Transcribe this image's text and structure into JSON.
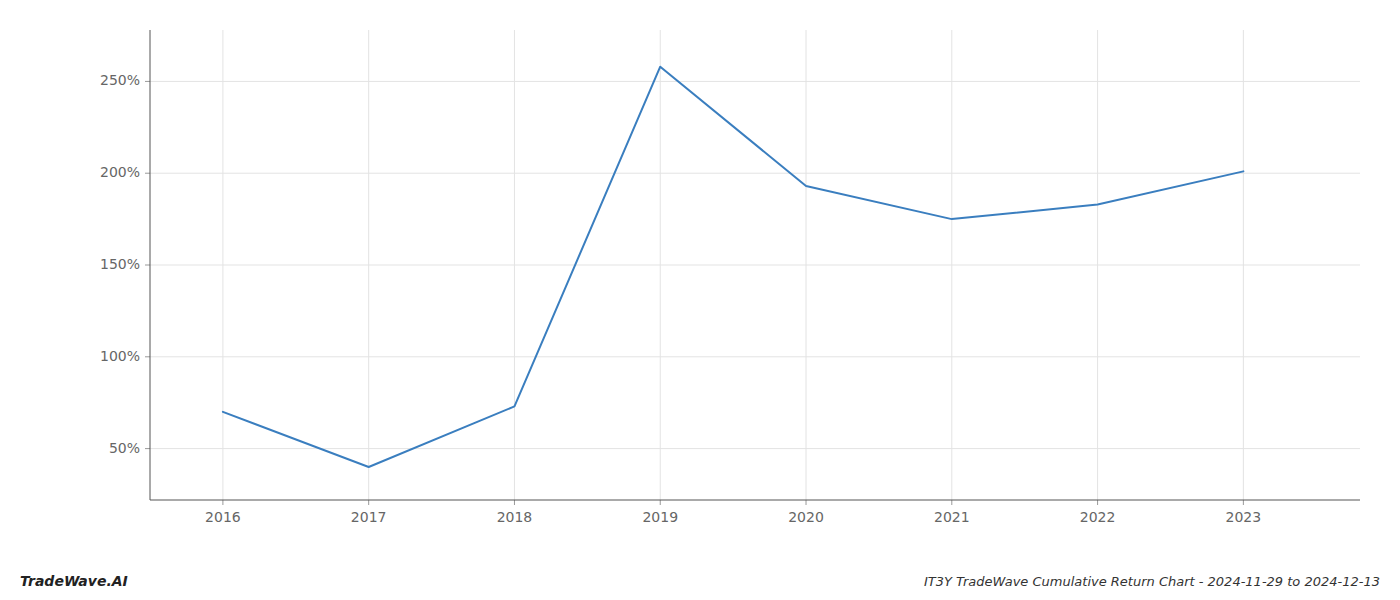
{
  "chart_data": {
    "type": "line",
    "title": "IT3Y TradeWave Cumulative Return Chart - 2024-11-29 to 2024-12-13",
    "annotations": [
      "TradeWave.AI"
    ],
    "x": [
      2016,
      2017,
      2018,
      2019,
      2020,
      2021,
      2022,
      2023
    ],
    "values": [
      70,
      40,
      73,
      258,
      193,
      175,
      183,
      201
    ],
    "color": "#3a7ebf",
    "xlim": [
      2015.5,
      2023.8
    ],
    "ylim": [
      22,
      278
    ],
    "xticks": [
      2016,
      2017,
      2018,
      2019,
      2020,
      2021,
      2022,
      2023
    ],
    "yticks": [
      {
        "value": 50,
        "label": "50%"
      },
      {
        "value": 100,
        "label": "100%"
      },
      {
        "value": 150,
        "label": "150%"
      },
      {
        "value": 200,
        "label": "200%"
      },
      {
        "value": 250,
        "label": "250%"
      }
    ],
    "grid": true
  }
}
